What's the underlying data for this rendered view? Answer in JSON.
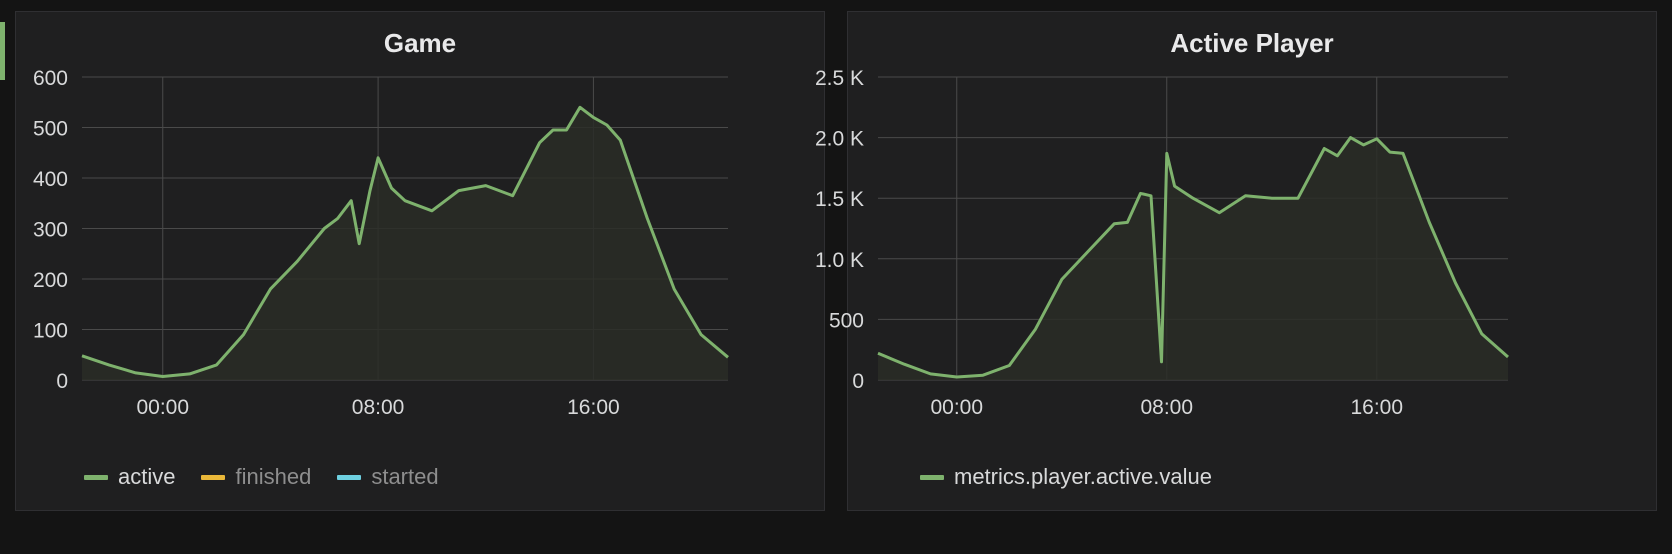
{
  "colors": {
    "active": "#7eb26d",
    "finished": "#eab839",
    "started": "#6ed0e0",
    "grid": "#4a4a4a",
    "fill": "#2a2d27"
  },
  "chart_data": [
    {
      "type": "area",
      "title": "Game",
      "xlabel": "",
      "ylabel": "",
      "x_ticks": [
        "00:00",
        "08:00",
        "16:00"
      ],
      "x_unit": "hours (00:00 = 0)",
      "x_range": [
        -3,
        21
      ],
      "ylim": [
        0,
        600
      ],
      "y_ticks": [
        "0",
        "100",
        "200",
        "300",
        "400",
        "500",
        "600"
      ],
      "grid": true,
      "legend": "bottom-left",
      "series": [
        {
          "name": "active",
          "color": "#7eb26d",
          "x": [
            -3,
            -2,
            -1,
            0,
            1,
            2,
            3,
            4,
            5,
            6,
            6.5,
            7,
            7.3,
            7.7,
            8,
            8.5,
            9,
            10,
            11,
            12,
            13,
            14,
            14.5,
            15,
            15.5,
            16,
            16.5,
            17,
            18,
            19,
            20,
            21
          ],
          "values": [
            48,
            30,
            14,
            7,
            12,
            30,
            90,
            180,
            235,
            300,
            320,
            355,
            270,
            375,
            440,
            380,
            355,
            335,
            375,
            385,
            365,
            470,
            495,
            495,
            540,
            520,
            505,
            475,
            320,
            180,
            90,
            45
          ]
        },
        {
          "name": "finished",
          "color": "#eab839",
          "x": [],
          "values": []
        },
        {
          "name": "started",
          "color": "#6ed0e0",
          "x": [],
          "values": []
        }
      ]
    },
    {
      "type": "area",
      "title": "Active Player",
      "xlabel": "",
      "ylabel": "",
      "x_ticks": [
        "00:00",
        "08:00",
        "16:00"
      ],
      "x_unit": "hours (00:00 = 0)",
      "x_range": [
        -3,
        21
      ],
      "ylim": [
        0,
        2500
      ],
      "y_ticks": [
        "0",
        "500",
        "1.0 K",
        "1.5 K",
        "2.0 K",
        "2.5 K"
      ],
      "grid": true,
      "legend": "bottom-left",
      "series": [
        {
          "name": "metrics.player.active.value",
          "color": "#7eb26d",
          "x": [
            -3,
            -2,
            -1,
            0,
            1,
            2,
            3,
            4,
            5,
            6,
            6.5,
            7,
            7.4,
            7.8,
            8,
            8.3,
            9,
            10,
            11,
            12,
            13,
            14,
            14.5,
            15,
            15.5,
            16,
            16.5,
            17,
            18,
            19,
            20,
            21
          ],
          "values": [
            220,
            130,
            50,
            25,
            40,
            120,
            420,
            830,
            1060,
            1290,
            1300,
            1540,
            1520,
            150,
            1870,
            1600,
            1500,
            1380,
            1520,
            1500,
            1500,
            1910,
            1850,
            2000,
            1940,
            1990,
            1880,
            1870,
            1300,
            800,
            380,
            190
          ]
        }
      ]
    }
  ]
}
